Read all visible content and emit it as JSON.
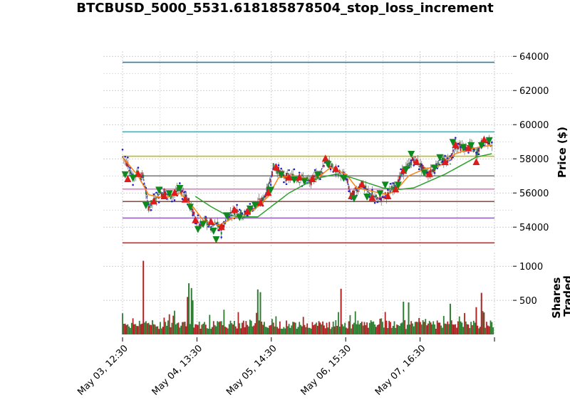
{
  "chart_data": {
    "type": "candlestick",
    "title": "BTCBUSD_5000_5531.618185878504_stop_loss_increment",
    "price_panel": {
      "ylabel": "Price ($)",
      "ylim": [
        52800,
        64300
      ],
      "yticks": [
        54000,
        56000,
        58000,
        60000,
        62000,
        64000
      ],
      "ytick_labels": [
        "54000",
        "56000",
        "58000",
        "60000",
        "62000",
        "64000"
      ],
      "grid": true,
      "horizontal_levels": [
        {
          "value": 63650,
          "color": "#2b7f9e"
        },
        {
          "value": 59580,
          "color": "#1fbfc9"
        },
        {
          "value": 58150,
          "color": "#bcbd22"
        },
        {
          "value": 57000,
          "color": "#7f7f7f"
        },
        {
          "value": 56230,
          "color": "#e377c2"
        },
        {
          "value": 55500,
          "color": "#8c564b"
        },
        {
          "value": 54530,
          "color": "#9467bd"
        },
        {
          "value": 53080,
          "color": "#d62728"
        }
      ],
      "price_path": [
        [
          0,
          58100
        ],
        [
          2,
          57700
        ],
        [
          4,
          56900
        ],
        [
          6,
          57200
        ],
        [
          8,
          56900
        ],
        [
          10,
          55200
        ],
        [
          12,
          55500
        ],
        [
          14,
          55900
        ],
        [
          16,
          56100
        ],
        [
          18,
          55800
        ],
        [
          20,
          56000
        ],
        [
          22,
          56200
        ],
        [
          24,
          56000
        ],
        [
          26,
          55300
        ],
        [
          28,
          54500
        ],
        [
          30,
          54100
        ],
        [
          32,
          54400
        ],
        [
          34,
          54000
        ],
        [
          36,
          54200
        ],
        [
          38,
          53800
        ],
        [
          40,
          54500
        ],
        [
          42,
          54900
        ],
        [
          44,
          55000
        ],
        [
          46,
          54700
        ],
        [
          48,
          54800
        ],
        [
          50,
          55100
        ],
        [
          52,
          55400
        ],
        [
          54,
          55600
        ],
        [
          56,
          56300
        ],
        [
          58,
          57500
        ],
        [
          60,
          57300
        ],
        [
          62,
          57000
        ],
        [
          64,
          56900
        ],
        [
          66,
          57000
        ],
        [
          68,
          56800
        ],
        [
          70,
          56900
        ],
        [
          72,
          56600
        ],
        [
          74,
          57000
        ],
        [
          76,
          57200
        ],
        [
          78,
          57900
        ],
        [
          80,
          57600
        ],
        [
          82,
          57300
        ],
        [
          84,
          57100
        ],
        [
          86,
          56900
        ],
        [
          88,
          55800
        ],
        [
          90,
          56200
        ],
        [
          92,
          56500
        ],
        [
          94,
          56100
        ],
        [
          96,
          55900
        ],
        [
          98,
          55600
        ],
        [
          100,
          55800
        ],
        [
          102,
          55900
        ],
        [
          104,
          56300
        ],
        [
          106,
          56600
        ],
        [
          108,
          57300
        ],
        [
          110,
          57600
        ],
        [
          112,
          58000
        ],
        [
          114,
          57700
        ],
        [
          116,
          57300
        ],
        [
          118,
          57100
        ],
        [
          120,
          57500
        ],
        [
          122,
          58000
        ],
        [
          124,
          57800
        ],
        [
          126,
          57900
        ],
        [
          128,
          58800
        ],
        [
          130,
          58700
        ],
        [
          132,
          58600
        ],
        [
          134,
          58800
        ],
        [
          136,
          58300
        ],
        [
          138,
          58900
        ],
        [
          140,
          59100
        ],
        [
          142,
          58900
        ]
      ],
      "buy_markers": [
        [
          2,
          56800
        ],
        [
          6,
          57100
        ],
        [
          12,
          55500
        ],
        [
          16,
          55800
        ],
        [
          20,
          56000
        ],
        [
          24,
          55600
        ],
        [
          28,
          54400
        ],
        [
          34,
          54300
        ],
        [
          38,
          54000
        ],
        [
          43,
          55000
        ],
        [
          48,
          54900
        ],
        [
          53,
          55400
        ],
        [
          56,
          56000
        ],
        [
          59,
          57500
        ],
        [
          64,
          56900
        ],
        [
          68,
          56900
        ],
        [
          73,
          56800
        ],
        [
          78,
          58000
        ],
        [
          82,
          57400
        ],
        [
          88,
          55800
        ],
        [
          92,
          56500
        ],
        [
          96,
          55700
        ],
        [
          102,
          55800
        ],
        [
          105,
          56200
        ],
        [
          108,
          57300
        ],
        [
          113,
          57800
        ],
        [
          118,
          57100
        ],
        [
          124,
          57800
        ],
        [
          128,
          58800
        ],
        [
          133,
          58600
        ],
        [
          136,
          57800
        ],
        [
          139,
          59100
        ]
      ],
      "sell_markers": [
        [
          1,
          57100
        ],
        [
          4,
          56900
        ],
        [
          9,
          55300
        ],
        [
          14,
          56200
        ],
        [
          18,
          56000
        ],
        [
          22,
          56300
        ],
        [
          26,
          55200
        ],
        [
          29,
          53900
        ],
        [
          31,
          54200
        ],
        [
          35,
          53800
        ],
        [
          36,
          53300
        ],
        [
          40,
          54700
        ],
        [
          45,
          54600
        ],
        [
          49,
          55100
        ],
        [
          51,
          55300
        ],
        [
          57,
          56200
        ],
        [
          61,
          57100
        ],
        [
          66,
          56800
        ],
        [
          70,
          56700
        ],
        [
          75,
          57100
        ],
        [
          79,
          57700
        ],
        [
          85,
          56900
        ],
        [
          89,
          55700
        ],
        [
          94,
          55800
        ],
        [
          99,
          56000
        ],
        [
          101,
          56500
        ],
        [
          106,
          56500
        ],
        [
          109,
          57400
        ],
        [
          111,
          58300
        ],
        [
          116,
          57200
        ],
        [
          120,
          57500
        ],
        [
          122,
          58100
        ],
        [
          127,
          59000
        ],
        [
          131,
          58700
        ],
        [
          134,
          58800
        ],
        [
          138,
          58800
        ],
        [
          141,
          59100
        ]
      ],
      "ma_fast": [
        [
          0,
          58100
        ],
        [
          6,
          57000
        ],
        [
          10,
          55900
        ],
        [
          16,
          55700
        ],
        [
          22,
          56000
        ],
        [
          27,
          55200
        ],
        [
          31,
          54400
        ],
        [
          37,
          54100
        ],
        [
          42,
          54500
        ],
        [
          48,
          54800
        ],
        [
          52,
          55200
        ],
        [
          56,
          55800
        ],
        [
          60,
          56900
        ],
        [
          66,
          57000
        ],
        [
          72,
          56800
        ],
        [
          76,
          57000
        ],
        [
          80,
          57500
        ],
        [
          86,
          57100
        ],
        [
          90,
          56300
        ],
        [
          96,
          56100
        ],
        [
          102,
          55900
        ],
        [
          106,
          56300
        ],
        [
          110,
          57000
        ],
        [
          116,
          57400
        ],
        [
          122,
          57600
        ],
        [
          128,
          58300
        ],
        [
          134,
          58600
        ],
        [
          142,
          58800
        ]
      ],
      "ma_slow": [
        [
          28,
          55800
        ],
        [
          34,
          55200
        ],
        [
          40,
          54700
        ],
        [
          46,
          54600
        ],
        [
          52,
          54600
        ],
        [
          58,
          55300
        ],
        [
          64,
          56000
        ],
        [
          70,
          56500
        ],
        [
          76,
          56900
        ],
        [
          82,
          57100
        ],
        [
          88,
          56900
        ],
        [
          94,
          56600
        ],
        [
          100,
          56300
        ],
        [
          106,
          56200
        ],
        [
          112,
          56300
        ],
        [
          118,
          56700
        ],
        [
          124,
          57100
        ],
        [
          130,
          57600
        ],
        [
          136,
          58100
        ],
        [
          142,
          58300
        ]
      ]
    },
    "volume_panel": {
      "ylabel": "Shares\nTraded",
      "ylim": [
        0,
        1200
      ],
      "yticks": [
        500,
        1000
      ],
      "ytick_labels": [
        "500",
        "1000"
      ],
      "spikes": [
        {
          "x": 8,
          "value": 1080,
          "color": "#b22222"
        },
        {
          "x": 25,
          "value": 550,
          "color": "#b22222"
        },
        {
          "x": 25.5,
          "value": 750,
          "color": "#2e7d32"
        },
        {
          "x": 26.5,
          "value": 680,
          "color": "#2e7d32"
        },
        {
          "x": 27,
          "value": 500,
          "color": "#2e7d32"
        },
        {
          "x": 52,
          "value": 660,
          "color": "#2e7d32"
        },
        {
          "x": 53,
          "value": 620,
          "color": "#2e7d32"
        },
        {
          "x": 84,
          "value": 670,
          "color": "#b22222"
        },
        {
          "x": 108,
          "value": 480,
          "color": "#2e7d32"
        },
        {
          "x": 110,
          "value": 470,
          "color": "#2e7d32"
        },
        {
          "x": 126,
          "value": 450,
          "color": "#2e7d32"
        },
        {
          "x": 138,
          "value": 610,
          "color": "#b22222"
        },
        {
          "x": 136,
          "value": 400,
          "color": "#b22222"
        }
      ]
    },
    "x_axis": {
      "range": [
        0,
        143
      ],
      "tick_positions": [
        0,
        28.6,
        57.2,
        85.8,
        114.4,
        143
      ],
      "tick_labels": [
        "May 03, 12:30",
        "May 04, 13:30",
        "May 05, 14:30",
        "May 06, 15:30",
        "May 07, 16:30",
        ""
      ]
    },
    "colors": {
      "price_line": "#3c3fbd",
      "price_dots": "#1f1fcf",
      "ma_fast": "#ff7f0e",
      "ma_slow": "#2ca02c",
      "buy_marker": "#e01b1b",
      "sell_marker": "#0f8a1e",
      "vol_up": "#2e7d32",
      "vol_down": "#b22222",
      "grid": "#b0b0b0"
    }
  }
}
